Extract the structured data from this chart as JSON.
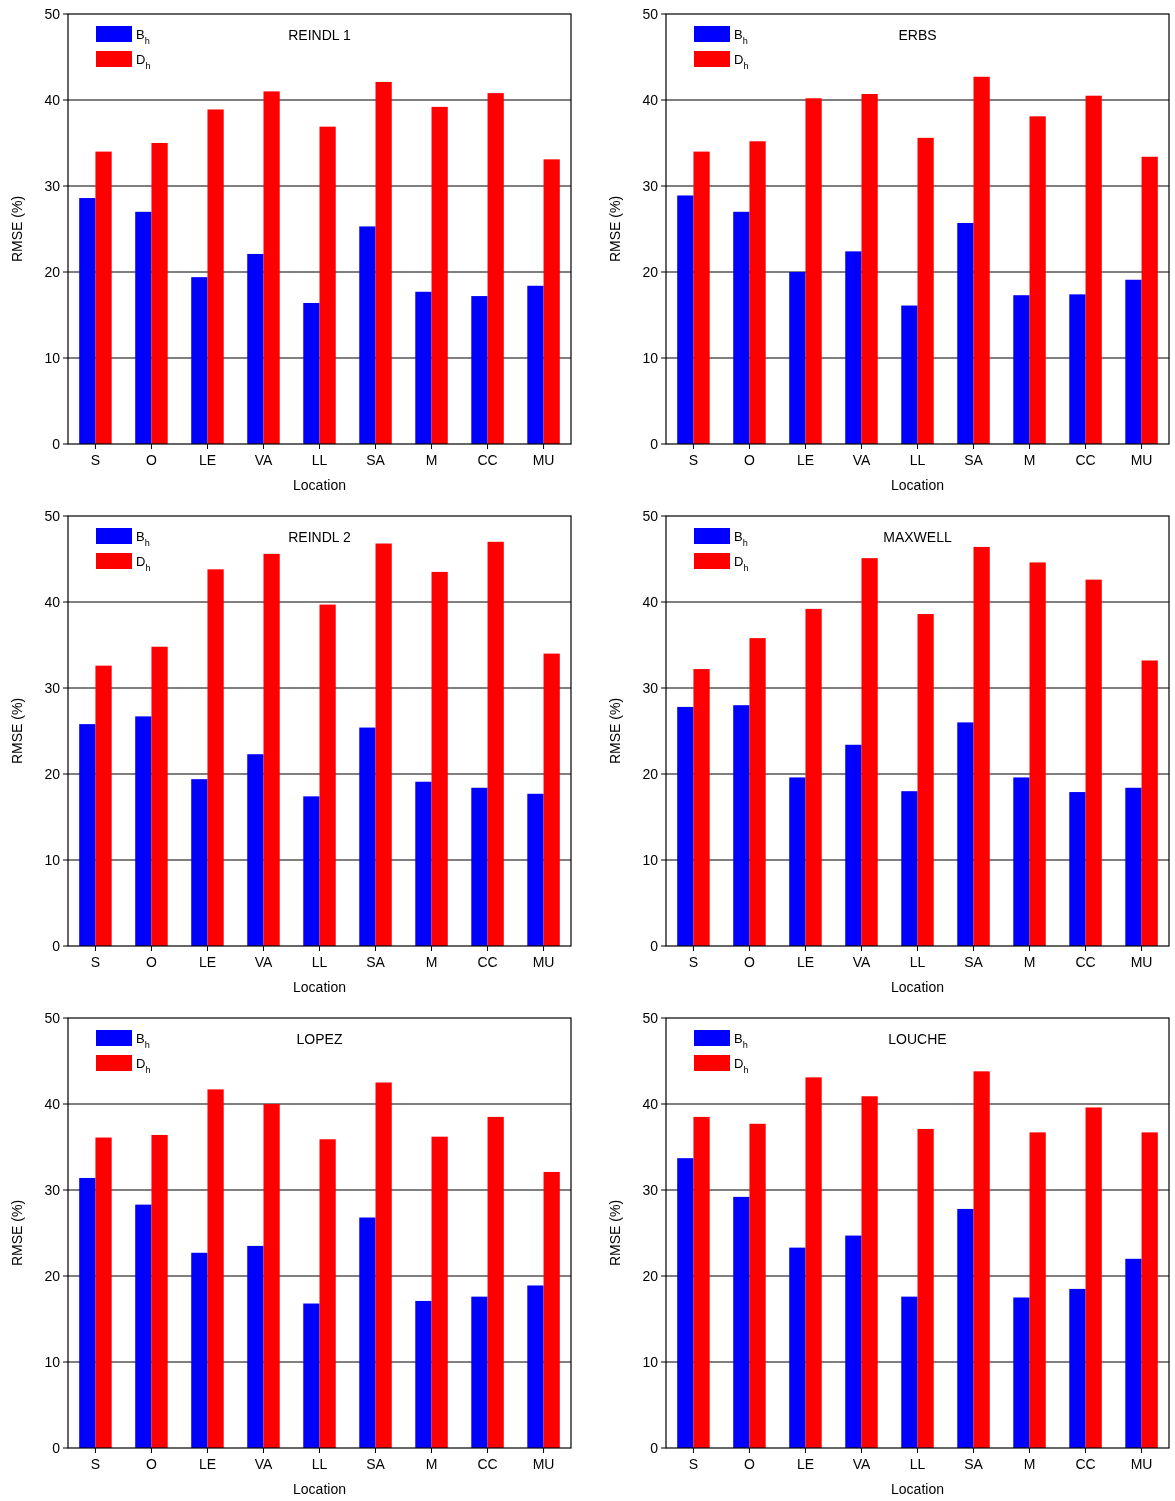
{
  "chart_data": [
    {
      "type": "bar",
      "title": "REINDL 1",
      "xlabel": "Location",
      "ylabel": "RMSE (%)",
      "categories": [
        "S",
        "O",
        "LE",
        "VA",
        "LL",
        "SA",
        "M",
        "CC",
        "MU"
      ],
      "ylim": [
        0,
        50
      ],
      "yticks": [
        0,
        10,
        20,
        30,
        40,
        50
      ],
      "grid": "y",
      "legend": "top left",
      "series": [
        {
          "name": "B$_{h}$",
          "color": "#0000ff",
          "values": [
            28.6,
            27.0,
            19.4,
            22.1,
            16.4,
            25.3,
            17.7,
            17.2,
            18.4
          ]
        },
        {
          "name": "D$_{h}$",
          "color": "#ff0000",
          "values": [
            34.0,
            35.0,
            38.9,
            41.0,
            36.9,
            42.1,
            39.2,
            40.8,
            33.1
          ]
        }
      ]
    },
    {
      "type": "bar",
      "title": "ERBS",
      "xlabel": "Location",
      "ylabel": "RMSE (%)",
      "categories": [
        "S",
        "O",
        "LE",
        "VA",
        "LL",
        "SA",
        "M",
        "CC",
        "MU"
      ],
      "ylim": [
        0,
        50
      ],
      "yticks": [
        0,
        10,
        20,
        30,
        40,
        50
      ],
      "grid": "y",
      "legend": "top left",
      "series": [
        {
          "name": "B$_{h}$",
          "color": "#0000ff",
          "values": [
            28.9,
            27.0,
            20.0,
            22.4,
            16.1,
            25.7,
            17.3,
            17.4,
            19.1
          ]
        },
        {
          "name": "D$_{h}$",
          "color": "#ff0000",
          "values": [
            34.0,
            35.2,
            40.2,
            40.7,
            35.6,
            42.7,
            38.1,
            40.5,
            33.4
          ]
        }
      ]
    },
    {
      "type": "bar",
      "title": "REINDL 2",
      "xlabel": "Location",
      "ylabel": "RMSE (%)",
      "categories": [
        "S",
        "O",
        "LE",
        "VA",
        "LL",
        "SA",
        "M",
        "CC",
        "MU"
      ],
      "ylim": [
        0,
        50
      ],
      "yticks": [
        0,
        10,
        20,
        30,
        40,
        50
      ],
      "grid": "y",
      "legend": "top left",
      "series": [
        {
          "name": "B$_{h}$",
          "color": "#0000ff",
          "values": [
            25.8,
            26.7,
            19.4,
            22.3,
            17.4,
            25.4,
            19.1,
            18.4,
            17.7
          ]
        },
        {
          "name": "D$_{h}$",
          "color": "#ff0000",
          "values": [
            32.6,
            34.8,
            43.8,
            45.6,
            39.7,
            46.8,
            43.5,
            47.0,
            34.0
          ]
        }
      ]
    },
    {
      "type": "bar",
      "title": "MAXWELL",
      "xlabel": "Location",
      "ylabel": "RMSE (%)",
      "categories": [
        "S",
        "O",
        "LE",
        "VA",
        "LL",
        "SA",
        "M",
        "CC",
        "MU"
      ],
      "ylim": [
        0,
        50
      ],
      "yticks": [
        0,
        10,
        20,
        30,
        40,
        50
      ],
      "grid": "y",
      "legend": "top left",
      "series": [
        {
          "name": "B$_{h}$",
          "color": "#0000ff",
          "values": [
            27.8,
            28.0,
            19.6,
            23.4,
            18.0,
            26.0,
            19.6,
            17.9,
            18.4
          ]
        },
        {
          "name": "D$_{h}$",
          "color": "#ff0000",
          "values": [
            32.2,
            35.8,
            39.2,
            45.1,
            38.6,
            46.4,
            44.6,
            42.6,
            33.2
          ]
        }
      ]
    },
    {
      "type": "bar",
      "title": "LOPEZ",
      "xlabel": "Location",
      "ylabel": "RMSE (%)",
      "categories": [
        "S",
        "O",
        "LE",
        "VA",
        "LL",
        "SA",
        "M",
        "CC",
        "MU"
      ],
      "ylim": [
        0,
        50
      ],
      "yticks": [
        0,
        10,
        20,
        30,
        40,
        50
      ],
      "grid": "y",
      "legend": "top left",
      "series": [
        {
          "name": "B$_{h}$",
          "color": "#0000ff",
          "values": [
            31.4,
            28.3,
            22.7,
            23.5,
            16.8,
            26.8,
            17.1,
            17.6,
            18.9
          ]
        },
        {
          "name": "D$_{h}$",
          "color": "#ff0000",
          "values": [
            36.1,
            36.4,
            41.7,
            40.0,
            35.9,
            42.5,
            36.2,
            38.5,
            32.1
          ]
        }
      ]
    },
    {
      "type": "bar",
      "title": "LOUCHE",
      "xlabel": "Location",
      "ylabel": "RMSE (%)",
      "categories": [
        "S",
        "O",
        "LE",
        "VA",
        "LL",
        "SA",
        "M",
        "CC",
        "MU"
      ],
      "ylim": [
        0,
        50
      ],
      "yticks": [
        0,
        10,
        20,
        30,
        40,
        50
      ],
      "grid": "y",
      "legend": "top left",
      "series": [
        {
          "name": "B$_{h}$",
          "color": "#0000ff",
          "values": [
            33.7,
            29.2,
            23.3,
            24.7,
            17.6,
            27.8,
            17.5,
            18.5,
            22.0
          ]
        },
        {
          "name": "D$_{h}$",
          "color": "#ff0000",
          "values": [
            38.5,
            37.7,
            43.1,
            40.9,
            37.1,
            43.8,
            36.7,
            39.6,
            36.7
          ]
        }
      ]
    }
  ]
}
